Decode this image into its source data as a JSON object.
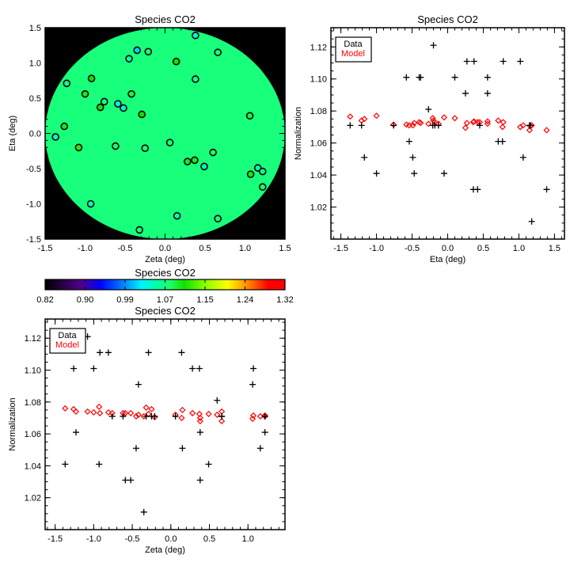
{
  "chart_data": [
    {
      "id": "map",
      "type": "scatter",
      "title": "Species CO2",
      "xlabel": "Zeta (deg)",
      "ylabel": "Eta (deg)",
      "xlim": [
        -1.5,
        1.5
      ],
      "ylim": [
        -1.5,
        1.5
      ],
      "xticks": [
        "-1.5",
        "-1.0",
        "-0.5",
        "0.0",
        "0.5",
        "1.0",
        "1.5"
      ],
      "yticks": [
        "-1.5",
        "-1.0",
        "-0.5",
        "0.0",
        "0.5",
        "1.0",
        "1.5"
      ],
      "field_radius": 1.5,
      "field_value": 1.072,
      "note": "points colored by data value"
    },
    {
      "id": "colorbar",
      "type": "colorbar",
      "title": "Species CO2",
      "range": [
        0.82,
        1.32
      ],
      "tick_labels": [
        "0.82",
        "0.90",
        "0.99",
        "1.07",
        "1.15",
        "1.24",
        "1.32"
      ]
    },
    {
      "id": "eta",
      "type": "scatter",
      "title": "Species CO2",
      "xlabel": "Eta (deg)",
      "ylabel": "Normalization",
      "xlim": [
        -1.64,
        1.64
      ],
      "ylim": [
        1.0,
        1.132
      ],
      "xticks": [
        "-1.5",
        "-1.0",
        "-0.5",
        "0.0",
        "0.5",
        "1.0",
        "1.5"
      ],
      "yticks": [
        "1.02",
        "1.04",
        "1.06",
        "1.08",
        "1.10",
        "1.12"
      ],
      "legend": {
        "position": "top-left",
        "entries": [
          {
            "label": "Data",
            "color": "#000000"
          },
          {
            "label": "Model",
            "color": "#ff0000"
          }
        ]
      }
    },
    {
      "id": "zeta",
      "type": "scatter",
      "title": "Species CO2",
      "xlabel": "Zeta (deg)",
      "ylabel": "Normalization",
      "xlim": [
        -1.63,
        1.48
      ],
      "ylim": [
        1.0,
        1.132
      ],
      "xticks": [
        "-1.5",
        "-1.0",
        "-0.5",
        "0.0",
        "0.5",
        "1.0"
      ],
      "yticks": [
        "1.02",
        "1.04",
        "1.06",
        "1.08",
        "1.10",
        "1.12"
      ],
      "legend": {
        "position": "top-left",
        "entries": [
          {
            "label": "Data",
            "color": "#000000"
          },
          {
            "label": "Model",
            "color": "#ff0000"
          }
        ]
      }
    }
  ],
  "points": [
    {
      "zeta": 0.38,
      "eta": 1.39,
      "data": 1.031,
      "model": 1.068
    },
    {
      "zeta": -0.35,
      "eta": 1.18,
      "data": 1.011,
      "model": 1.071
    },
    {
      "zeta": -0.21,
      "eta": 1.16,
      "data": 1.071,
      "model": 1.0705
    },
    {
      "zeta": 0.66,
      "eta": 1.15,
      "data": 1.071,
      "model": 1.068
    },
    {
      "zeta": -0.45,
      "eta": 1.06,
      "data": 1.051,
      "model": 1.071
    },
    {
      "zeta": 0.14,
      "eta": 1.02,
      "data": 1.111,
      "model": 1.07
    },
    {
      "zeta": -0.92,
      "eta": 0.78,
      "data": 1.111,
      "model": 1.073
    },
    {
      "zeta": 0.38,
      "eta": 0.77,
      "data": 1.061,
      "model": 1.07
    },
    {
      "zeta": -1.23,
      "eta": 0.71,
      "data": 1.061,
      "model": 1.074
    },
    {
      "zeta": -1.0,
      "eta": 0.56,
      "data": 1.101,
      "model": 1.0735
    },
    {
      "zeta": -0.42,
      "eta": 0.56,
      "data": 1.091,
      "model": 1.072
    },
    {
      "zeta": -0.76,
      "eta": 0.45,
      "data": 1.071,
      "model": 1.073
    },
    {
      "zeta": -0.59,
      "eta": 0.42,
      "data": 1.031,
      "model": 1.073
    },
    {
      "zeta": -0.81,
      "eta": 0.37,
      "data": 1.111,
      "model": 1.0735
    },
    {
      "zeta": -0.52,
      "eta": 0.36,
      "data": 1.031,
      "model": 1.073
    },
    {
      "zeta": -0.29,
      "eta": 0.27,
      "data": 1.111,
      "model": 1.0725
    },
    {
      "zeta": 1.06,
      "eta": 0.25,
      "data": 1.091,
      "model": 1.0695
    },
    {
      "zeta": -1.26,
      "eta": 0.1,
      "data": 1.101,
      "model": 1.0755
    },
    {
      "zeta": -1.37,
      "eta": -0.05,
      "data": 1.041,
      "model": 1.076
    },
    {
      "zeta": 0.06,
      "eta": -0.13,
      "data": 1.071,
      "model": 1.072
    },
    {
      "zeta": -0.62,
      "eta": -0.18,
      "data": 1.071,
      "model": 1.073
    },
    {
      "zeta": -1.08,
      "eta": -0.2,
      "data": 1.121,
      "model": 1.074
    },
    {
      "zeta": -0.25,
      "eta": -0.21,
      "data": 1.071,
      "model": 1.0755
    },
    {
      "zeta": 0.6,
      "eta": -0.27,
      "data": 1.081,
      "model": 1.072
    },
    {
      "zeta": 0.37,
      "eta": -0.38,
      "data": 1.101,
      "model": 1.0725
    },
    {
      "zeta": 0.28,
      "eta": -0.4,
      "data": 1.101,
      "model": 1.073
    },
    {
      "zeta": 0.49,
      "eta": -0.47,
      "data": 1.041,
      "model": 1.0725
    },
    {
      "zeta": 1.16,
      "eta": -0.49,
      "data": 1.051,
      "model": 1.071
    },
    {
      "zeta": 1.22,
      "eta": -0.54,
      "data": 1.061,
      "model": 1.071
    },
    {
      "zeta": 1.07,
      "eta": -0.58,
      "data": 1.101,
      "model": 1.0715
    },
    {
      "zeta": 1.22,
      "eta": -0.76,
      "data": 1.071,
      "model": 1.0715
    },
    {
      "zeta": -0.93,
      "eta": -1.0,
      "data": 1.041,
      "model": 1.077
    },
    {
      "zeta": 0.15,
      "eta": -1.17,
      "data": 1.051,
      "model": 1.075
    },
    {
      "zeta": 0.66,
      "eta": -1.21,
      "data": 1.071,
      "model": 1.074
    },
    {
      "zeta": -0.32,
      "eta": -1.37,
      "data": 1.071,
      "model": 1.0765
    }
  ],
  "colors": {
    "data": "#000000",
    "model": "#ff0000",
    "background": "#000000"
  }
}
